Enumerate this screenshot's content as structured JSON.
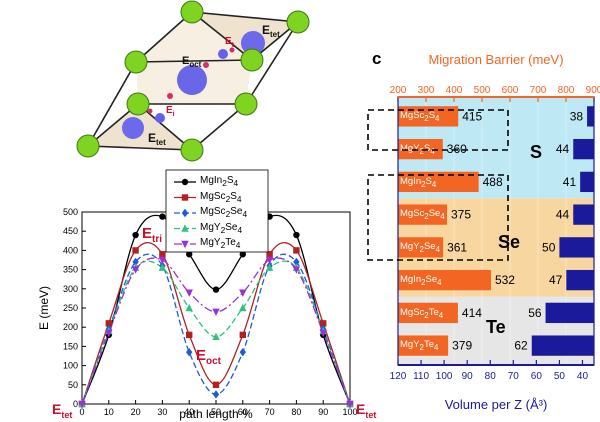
{
  "colors": {
    "orange": "#F26522",
    "navy": "#1A1A9A",
    "red_label": "#C8102E",
    "sulfide_bg": "#BFE8F5",
    "selenide_bg": "#F7D6A0",
    "telluride_bg": "#E6E6E6",
    "sphere_green": "#7FD321",
    "sphere_blue": "#5555EE"
  },
  "crystal": {
    "labels": {
      "e_tet_top": "E",
      "e_tet_top_sub": "tet",
      "e_oct": "E",
      "e_oct_sub": "oct",
      "e_t": "E",
      "e_t_sub": "t",
      "e_i": "E",
      "e_i_sub": "i",
      "e_tet_bottom": "E",
      "e_tet_bottom_sub": "tet"
    }
  },
  "panel_c": {
    "panel_letter": "c",
    "top_axis_title": "Migration Barrier (meV)",
    "bottom_axis_title": "Volume per Z (Å³)",
    "group_labels": {
      "S": "S",
      "Se": "Se",
      "Te": "Te"
    }
  },
  "chart_data": [
    {
      "type": "line",
      "xlabel": "path length %",
      "ylabel": "E (meV)",
      "xlim": [
        0,
        100
      ],
      "ylim": [
        0,
        500
      ],
      "x_ticks": [
        0,
        10,
        20,
        30,
        40,
        50,
        60,
        70,
        80,
        90,
        100
      ],
      "y_ticks": [
        0,
        50,
        100,
        150,
        200,
        250,
        300,
        350,
        400,
        450,
        500
      ],
      "legend_placement": "top-center",
      "annotations": {
        "e_tri": "E",
        "e_tri_sub": "tri",
        "e_oct": "E",
        "e_oct_sub": "oct",
        "e_tet_left": "E",
        "e_tet_left_sub": "tet",
        "e_tet_right": "E",
        "e_tet_right_sub": "tet"
      },
      "series": [
        {
          "name": "MgIn2S4",
          "label_html": "MgIn<sub>2</sub>S<sub>4</sub>",
          "color": "#000000",
          "marker": "circle",
          "dash": "",
          "points": [
            [
              0,
              0
            ],
            [
              10,
              180
            ],
            [
              20,
              440
            ],
            [
              30,
              488
            ],
            [
              40,
              390
            ],
            [
              50,
              298
            ],
            [
              60,
              390
            ],
            [
              70,
              488
            ],
            [
              80,
              440
            ],
            [
              90,
              180
            ],
            [
              100,
              0
            ]
          ]
        },
        {
          "name": "MgSc2S4",
          "label_html": "MgSc<sub>2</sub>S<sub>4</sub>",
          "color": "#B22222",
          "marker": "square",
          "dash": "",
          "points": [
            [
              0,
              0
            ],
            [
              10,
              210
            ],
            [
              20,
              400
            ],
            [
              30,
              390
            ],
            [
              40,
              180
            ],
            [
              50,
              50
            ],
            [
              60,
              180
            ],
            [
              70,
              390
            ],
            [
              80,
              400
            ],
            [
              90,
              210
            ],
            [
              100,
              0
            ]
          ]
        },
        {
          "name": "MgSc2Se4",
          "label_html": "MgSc<sub>2</sub>Se<sub>4</sub>",
          "color": "#1E5BD8",
          "marker": "diamond",
          "dash": "6,3",
          "points": [
            [
              0,
              0
            ],
            [
              10,
              195
            ],
            [
              20,
              370
            ],
            [
              30,
              360
            ],
            [
              40,
              135
            ],
            [
              50,
              25
            ],
            [
              60,
              135
            ],
            [
              70,
              360
            ],
            [
              80,
              370
            ],
            [
              90,
              195
            ],
            [
              100,
              0
            ]
          ]
        },
        {
          "name": "MgY2Se4",
          "label_html": "MgY<sub>2</sub>Se<sub>4</sub>",
          "color": "#2EC27E",
          "marker": "triangle-up",
          "dash": "6,3",
          "points": [
            [
              0,
              0
            ],
            [
              10,
              190
            ],
            [
              20,
              355
            ],
            [
              30,
              355
            ],
            [
              40,
              250
            ],
            [
              50,
              175
            ],
            [
              60,
              250
            ],
            [
              70,
              355
            ],
            [
              80,
              355
            ],
            [
              90,
              190
            ],
            [
              100,
              0
            ]
          ]
        },
        {
          "name": "MgY2Te4",
          "label_html": "MgY<sub>2</sub>Te<sub>4</sub>",
          "color": "#9B30D9",
          "marker": "triangle-down",
          "dash": "8,3,2,3",
          "points": [
            [
              0,
              0
            ],
            [
              10,
              185
            ],
            [
              20,
              350
            ],
            [
              30,
              375
            ],
            [
              40,
              290
            ],
            [
              50,
              240
            ],
            [
              60,
              290
            ],
            [
              70,
              375
            ],
            [
              80,
              350
            ],
            [
              90,
              185
            ],
            [
              100,
              0
            ]
          ]
        }
      ]
    },
    {
      "type": "bar",
      "orientation": "horizontal",
      "top_axis": {
        "title": "Migration Barrier (meV)",
        "min": 200,
        "max": 900,
        "ticks": [
          200,
          300,
          400,
          500,
          600,
          700,
          800,
          900
        ]
      },
      "bottom_axis": {
        "title": "Volume per Z (Å³)",
        "min": 120,
        "max": 35,
        "ticks": [
          120,
          110,
          100,
          90,
          80,
          70,
          60,
          50,
          40
        ]
      },
      "categories": [
        {
          "html": "MgSc<sub>2</sub>S<sub>4</sub>",
          "name": "MgSc2S4",
          "group": "S"
        },
        {
          "html": "MgY<sub>2</sub>S<sub>4</sub>",
          "name": "MgY2S4",
          "group": "S"
        },
        {
          "html": "MgIn<sub>2</sub>S<sub>4</sub>",
          "name": "MgIn2S4",
          "group": "S"
        },
        {
          "html": "MgSc<sub>2</sub>Se<sub>4</sub>",
          "name": "MgSc2Se4",
          "group": "Se"
        },
        {
          "html": "MgY<sub>2</sub>Se<sub>4</sub>",
          "name": "MgY2Se4",
          "group": "Se"
        },
        {
          "html": "MgIn<sub>2</sub>Se<sub>4</sub>",
          "name": "MgIn2Se4",
          "group": "Se"
        },
        {
          "html": "MgSc<sub>2</sub>Te<sub>4</sub>",
          "name": "MgSc2Te4",
          "group": "Te"
        },
        {
          "html": "MgY<sub>2</sub>Te<sub>4</sub>",
          "name": "MgY2Te4",
          "group": "Te"
        }
      ],
      "series": [
        {
          "name": "Migration Barrier (meV)",
          "axis": "top",
          "color": "#F26522",
          "values": [
            415,
            360,
            488,
            375,
            361,
            532,
            414,
            379
          ]
        },
        {
          "name": "Volume per Z (Å³)",
          "axis": "bottom",
          "color": "#1A1A9A",
          "values": [
            38,
            44,
            41,
            44,
            50,
            47,
            56,
            62
          ]
        }
      ]
    }
  ]
}
